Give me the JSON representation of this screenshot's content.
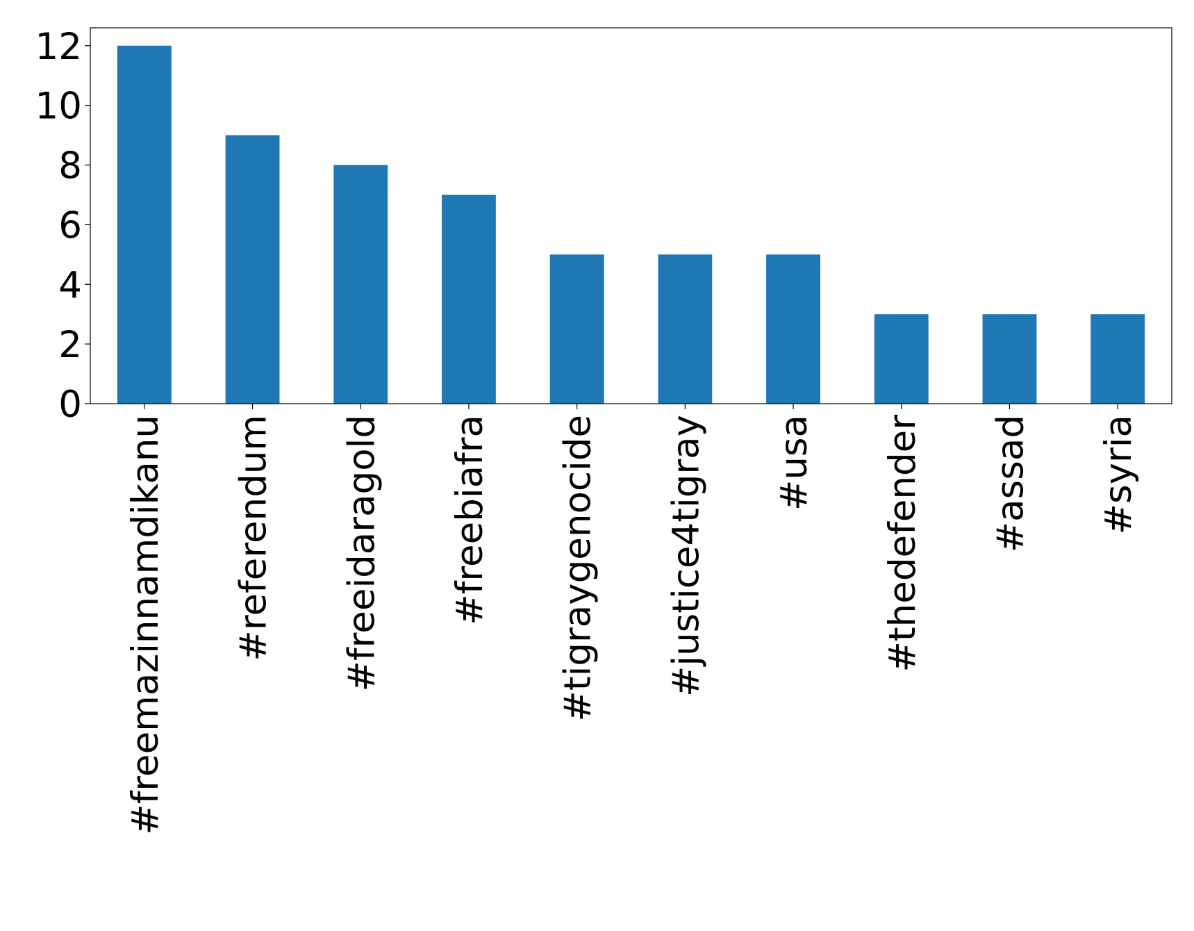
{
  "chart_data": {
    "type": "bar",
    "categories": [
      "#freemazinnamdikanu",
      "#referendum",
      "#freeidaragold",
      "#freebiafra",
      "#tigraygenocide",
      "#justice4tigray",
      "#usa",
      "#thedefender",
      "#assad",
      "#syria"
    ],
    "values": [
      12,
      9,
      8,
      7,
      5,
      5,
      5,
      3,
      3,
      3
    ],
    "color": "#1f77b4",
    "ylim": [
      0,
      12.6
    ],
    "yticks": [
      0,
      2,
      4,
      6,
      8,
      10,
      12
    ],
    "grid": false
  }
}
